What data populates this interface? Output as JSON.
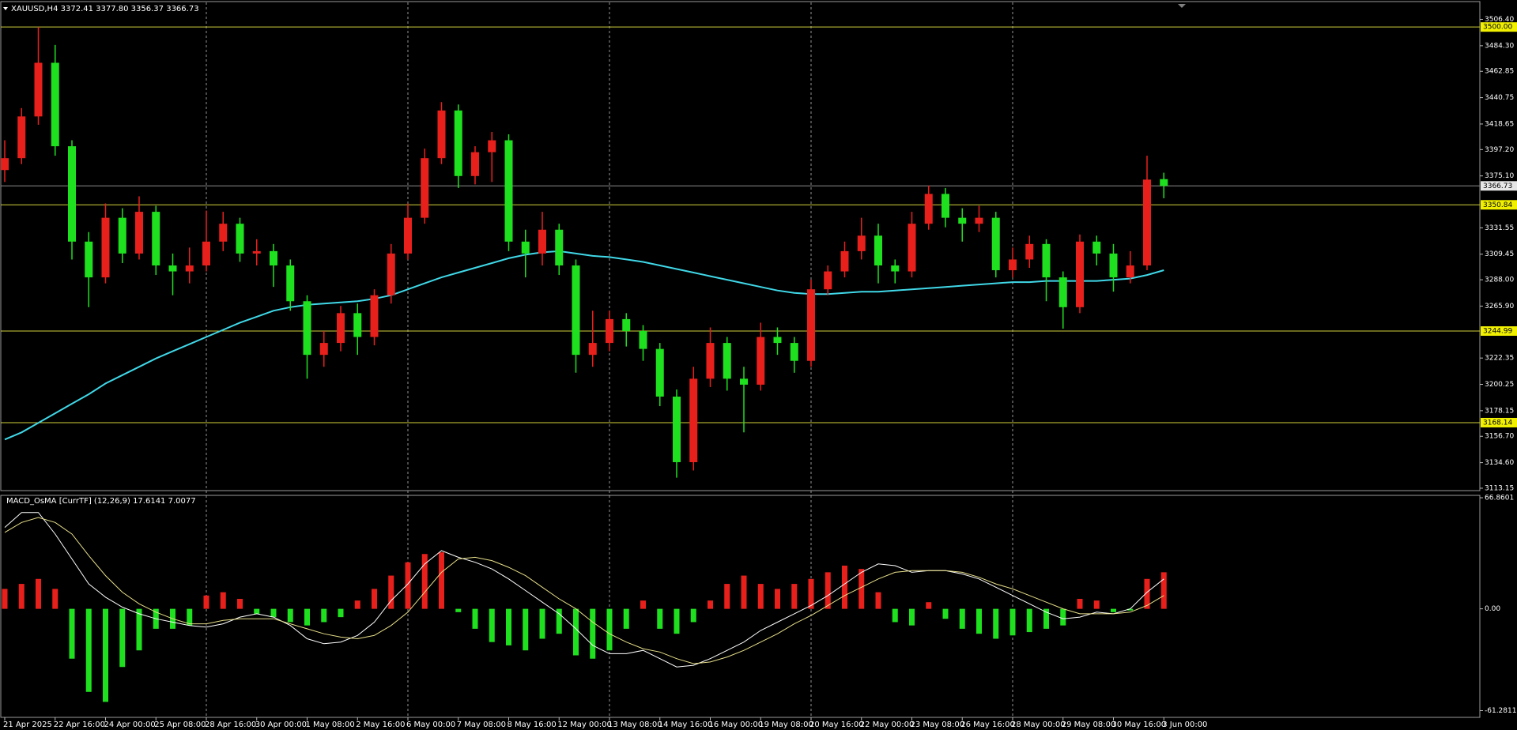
{
  "chart_data": [
    {
      "type": "candlestick",
      "title": "XAUUSD,H4  3372.41 3377.80 3356.37 3366.73",
      "categories": [
        "21 Apr 2025",
        null,
        null,
        "22 Apr 16:00",
        null,
        null,
        "24 Apr 00:00",
        null,
        null,
        "25 Apr 08:00",
        null,
        null,
        "28 Apr 16:00",
        null,
        null,
        "30 Apr 00:00",
        null,
        null,
        "1 May 08:00",
        null,
        null,
        "2 May 16:00",
        null,
        null,
        "6 May 00:00",
        null,
        null,
        "7 May 08:00",
        null,
        null,
        "8 May 16:00",
        null,
        null,
        "12 May 00:00",
        null,
        null,
        "13 May 08:00",
        null,
        null,
        "14 May 16:00",
        null,
        null,
        "16 May 00:00",
        null,
        null,
        "19 May 08:00",
        null,
        null,
        "20 May 16:00",
        null,
        null,
        "22 May 00:00",
        null,
        null,
        "23 May 08:00",
        null,
        null,
        "26 May 16:00",
        null,
        null,
        "28 May 00:00",
        null,
        null,
        "29 May 08:00",
        null,
        null,
        "30 May 16:00",
        null,
        null,
        "3 Jun 00:00"
      ],
      "open": [
        3380,
        3390,
        3425,
        3470,
        3400,
        3320,
        3290,
        3340,
        3310,
        3345,
        3300,
        3295,
        3300,
        3320,
        3335,
        3310,
        3312,
        3300,
        3270,
        3225,
        3235,
        3260,
        3240,
        3275,
        3310,
        3340,
        3390,
        3430,
        3375,
        3395,
        3405,
        3320,
        3310,
        3330,
        3300,
        3225,
        3235,
        3255,
        3245,
        3230,
        3190,
        3135,
        3205,
        3235,
        3205,
        3200,
        3240,
        3235,
        3220,
        3280,
        3295,
        3312,
        3325,
        3300,
        3295,
        3335,
        3360,
        3340,
        3335,
        3340,
        3296,
        3305,
        3318,
        3290,
        3265,
        3320,
        3310,
        3290,
        3300,
        3372.41
      ],
      "high": [
        3405,
        3432,
        3500,
        3485,
        3405,
        3328,
        3352,
        3348,
        3358,
        3350,
        3310,
        3315,
        3346,
        3345,
        3340,
        3322,
        3318,
        3305,
        3275,
        3245,
        3266,
        3268,
        3280,
        3318,
        3352,
        3398,
        3437,
        3435,
        3400,
        3412,
        3410,
        3330,
        3345,
        3335,
        3305,
        3262,
        3262,
        3260,
        3250,
        3235,
        3196,
        3215,
        3248,
        3240,
        3215,
        3252,
        3248,
        3240,
        3288,
        3300,
        3320,
        3340,
        3335,
        3305,
        3345,
        3367,
        3365,
        3348,
        3350,
        3345,
        3315,
        3325,
        3322,
        3295,
        3326,
        3325,
        3318,
        3312,
        3392,
        3377.8
      ],
      "low": [
        3370,
        3385,
        3418,
        3392,
        3305,
        3265,
        3285,
        3302,
        3305,
        3292,
        3275,
        3285,
        3295,
        3312,
        3303,
        3300,
        3282,
        3262,
        3205,
        3215,
        3228,
        3225,
        3233,
        3268,
        3305,
        3335,
        3385,
        3365,
        3368,
        3370,
        3312,
        3290,
        3300,
        3292,
        3210,
        3215,
        3228,
        3232,
        3220,
        3182,
        3122,
        3128,
        3198,
        3195,
        3160,
        3195,
        3225,
        3210,
        3215,
        3275,
        3290,
        3305,
        3285,
        3285,
        3290,
        3330,
        3332,
        3320,
        3328,
        3290,
        3290,
        3298,
        3270,
        3247,
        3260,
        3300,
        3278,
        3285,
        3296,
        3356.37
      ],
      "close": [
        3390,
        3425,
        3470,
        3400,
        3320,
        3290,
        3340,
        3310,
        3345,
        3300,
        3295,
        3300,
        3320,
        3335,
        3310,
        3312,
        3300,
        3270,
        3225,
        3235,
        3260,
        3240,
        3275,
        3310,
        3340,
        3390,
        3430,
        3375,
        3395,
        3405,
        3320,
        3310,
        3330,
        3300,
        3225,
        3235,
        3255,
        3245,
        3230,
        3190,
        3135,
        3205,
        3235,
        3205,
        3200,
        3240,
        3235,
        3220,
        3280,
        3295,
        3312,
        3325,
        3300,
        3295,
        3335,
        3360,
        3340,
        3335,
        3340,
        3296,
        3305,
        3318,
        3290,
        3265,
        3320,
        3310,
        3290,
        3300,
        3372,
        3366.73
      ],
      "up_color": "#e8201c",
      "down_color": "#1fe01f",
      "ma": {
        "color": "#40d8e8",
        "values": [
          3154,
          3160,
          3168,
          3176,
          3184,
          3192,
          3201,
          3208,
          3215,
          3222,
          3228,
          3234,
          3240,
          3246,
          3252,
          3257,
          3262,
          3265,
          3267,
          3268,
          3269,
          3270,
          3272,
          3275,
          3280,
          3285,
          3290,
          3294,
          3298,
          3302,
          3306,
          3309,
          3311,
          3312,
          3310,
          3308,
          3307,
          3305,
          3303,
          3300,
          3297,
          3294,
          3291,
          3288,
          3285,
          3282,
          3279,
          3277,
          3276,
          3276,
          3277,
          3278,
          3278,
          3279,
          3280,
          3281,
          3282,
          3283,
          3284,
          3285,
          3286,
          3286,
          3287,
          3287,
          3287,
          3287,
          3288,
          3289,
          3292,
          3296
        ]
      },
      "levels": [
        {
          "value": 3500,
          "label": "3500.00"
        },
        3350.84,
        3244.99,
        3168.14
      ],
      "levels_color": "#d2d23c",
      "ylim": [
        3111.8,
        3520
      ],
      "yticks": [
        {
          "value": 3506.4,
          "label": "3506.40"
        },
        {
          "value": 3484.3,
          "label": "3484.30"
        },
        3462.85,
        3440.75,
        3418.65,
        {
          "value": 3397.2,
          "label": "3397.20"
        },
        {
          "value": 3375.1,
          "label": "3375.10"
        },
        3331.55,
        3309.45,
        {
          "value": 3288,
          "label": "3288.00"
        },
        {
          "value": 3265.9,
          "label": "3265.90"
        },
        3222.35,
        3200.25,
        3178.15,
        {
          "value": 3156.7,
          "label": "3156.70"
        },
        {
          "value": 3134.6,
          "label": "3134.60"
        },
        3113.15
      ],
      "grid": true
    },
    {
      "type": "bar",
      "title": "MACD_OsMA [CurrTF] (12,26,9) 17.6141 7.0077",
      "values": [
        12,
        15,
        18,
        12,
        -30,
        -50,
        -56,
        -35,
        -25,
        -12,
        -12,
        -10,
        8,
        10,
        6,
        -3,
        -5,
        -8,
        -10,
        -8,
        -5,
        5,
        12,
        20,
        28,
        33,
        34,
        -2,
        -12,
        -20,
        -22,
        -25,
        -18,
        -15,
        -28,
        -30,
        -25,
        -12,
        5,
        -12,
        -15,
        -8,
        5,
        15,
        20,
        15,
        12,
        15,
        18,
        22,
        26,
        24,
        10,
        -8,
        -10,
        4,
        -6,
        -12,
        -15,
        -18,
        -16,
        -14,
        -12,
        -10,
        6,
        5,
        -2,
        -1,
        18,
        22
      ],
      "up_color": "#e8201c",
      "down_color": "#1fe01f",
      "lines": [
        {
          "color": "#ffffff",
          "values": [
            49,
            58,
            58,
            45,
            30,
            15,
            7,
            1,
            -3,
            -6,
            -8,
            -10,
            -11,
            -9,
            -5,
            -3,
            -5,
            -10,
            -18,
            -21,
            -20,
            -16,
            -8,
            5,
            15,
            27,
            35,
            31,
            28,
            24,
            18,
            11,
            4,
            -3,
            -12,
            -22,
            -27,
            -27,
            -25,
            -30,
            -35,
            -34,
            -30,
            -25,
            -20,
            -13,
            -8,
            -3,
            2,
            8,
            15,
            22,
            27,
            26,
            22,
            23,
            23,
            21,
            18,
            13,
            8,
            3,
            -2,
            -6,
            -5,
            -2,
            -3,
            0,
            10,
            18
          ]
        },
        {
          "color": "#e8e08a",
          "values": [
            46,
            52,
            55,
            52,
            45,
            32,
            20,
            10,
            3,
            -2,
            -6,
            -9,
            -9,
            -7,
            -6,
            -6,
            -6,
            -9,
            -12,
            -15,
            -17,
            -18,
            -16,
            -10,
            -2,
            10,
            22,
            30,
            31,
            29,
            25,
            20,
            13,
            6,
            0,
            -8,
            -15,
            -20,
            -24,
            -26,
            -30,
            -33,
            -32,
            -29,
            -25,
            -20,
            -15,
            -9,
            -4,
            2,
            8,
            13,
            18,
            22,
            23,
            23,
            23,
            22,
            19,
            15,
            12,
            8,
            4,
            0,
            -3,
            -3,
            -3,
            -2,
            2,
            8
          ]
        }
      ],
      "ylim": [
        -64.85,
        68.3
      ],
      "yticks": [
        66.8601,
        {
          "value": 0,
          "label": "0.00"
        },
        -61.2811
      ]
    }
  ]
}
